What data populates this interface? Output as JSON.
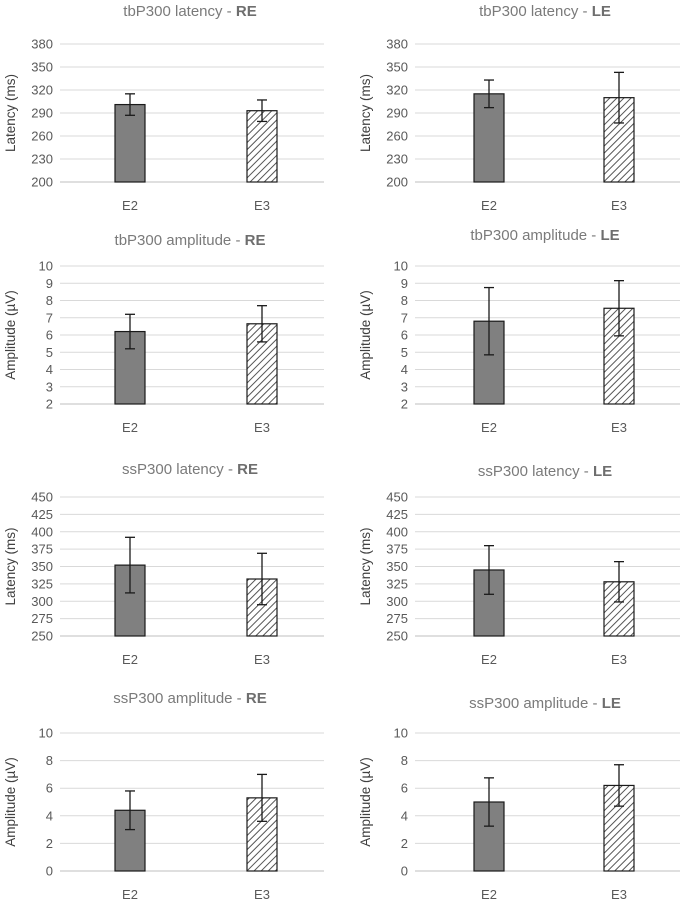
{
  "chart_data": [
    {
      "type": "bar",
      "title": "tbP300 latency",
      "title_suffix": "RE",
      "ylabel": "Latency  (ms)",
      "categories": [
        "E2",
        "E3"
      ],
      "ylim": [
        200,
        380
      ],
      "yticks": [
        200,
        230,
        260,
        290,
        320,
        350,
        380
      ],
      "values": [
        301,
        293
      ],
      "errors": [
        14,
        14
      ],
      "patterns": [
        "solid",
        "hatched"
      ]
    },
    {
      "type": "bar",
      "title": "tbP300 latency",
      "title_suffix": "LE",
      "ylabel": "Latency  (ms)",
      "categories": [
        "E2",
        "E3"
      ],
      "ylim": [
        200,
        380
      ],
      "yticks": [
        200,
        230,
        260,
        290,
        320,
        350,
        380
      ],
      "values": [
        315,
        310
      ],
      "errors": [
        18,
        33
      ],
      "patterns": [
        "solid",
        "hatched"
      ]
    },
    {
      "type": "bar",
      "title": "tbP300 amplitude",
      "title_suffix": "RE",
      "ylabel": "Amplitude (µV)",
      "categories": [
        "E2",
        "E3"
      ],
      "ylim": [
        2,
        10
      ],
      "yticks": [
        2,
        3,
        4,
        5,
        6,
        7,
        8,
        9,
        10
      ],
      "values": [
        6.2,
        6.65
      ],
      "errors": [
        1.0,
        1.05
      ],
      "patterns": [
        "solid",
        "hatched"
      ]
    },
    {
      "type": "bar",
      "title": "tbP300 amplitude",
      "title_suffix": "LE",
      "ylabel": "Amplitude (µV)",
      "categories": [
        "E2",
        "E3"
      ],
      "ylim": [
        2,
        10
      ],
      "yticks": [
        2,
        3,
        4,
        5,
        6,
        7,
        8,
        9,
        10
      ],
      "values": [
        6.8,
        7.55
      ],
      "errors": [
        1.95,
        1.6
      ],
      "patterns": [
        "solid",
        "hatched"
      ]
    },
    {
      "type": "bar",
      "title": "ssP300 latency",
      "title_suffix": "RE",
      "ylabel": "Latency  (ms)",
      "categories": [
        "E2",
        "E3"
      ],
      "ylim": [
        250,
        450
      ],
      "yticks": [
        250,
        275,
        300,
        325,
        350,
        375,
        400,
        425,
        450
      ],
      "values": [
        352,
        332
      ],
      "errors": [
        40,
        37
      ],
      "patterns": [
        "solid",
        "hatched"
      ]
    },
    {
      "type": "bar",
      "title": "ssP300 latency",
      "title_suffix": "LE",
      "ylabel": "Latency  (ms)",
      "categories": [
        "E2",
        "E3"
      ],
      "ylim": [
        250,
        450
      ],
      "yticks": [
        250,
        275,
        300,
        325,
        350,
        375,
        400,
        425,
        450
      ],
      "values": [
        345,
        328
      ],
      "errors": [
        35,
        29
      ],
      "patterns": [
        "solid",
        "hatched"
      ]
    },
    {
      "type": "bar",
      "title": "ssP300 amplitude",
      "title_suffix": "RE",
      "ylabel": "Amplitude (µV)",
      "categories": [
        "E2",
        "E3"
      ],
      "ylim": [
        0,
        10
      ],
      "yticks": [
        0,
        2,
        4,
        6,
        8,
        10
      ],
      "values": [
        4.4,
        5.3
      ],
      "errors": [
        1.4,
        1.7
      ],
      "patterns": [
        "solid",
        "hatched"
      ]
    },
    {
      "type": "bar",
      "title": "ssP300 amplitude",
      "title_suffix": "LE",
      "ylabel": "Amplitude (µV)",
      "categories": [
        "E2",
        "E3"
      ],
      "ylim": [
        0,
        10
      ],
      "yticks": [
        0,
        2,
        4,
        6,
        8,
        10
      ],
      "values": [
        5.0,
        6.2
      ],
      "errors": [
        1.75,
        1.5
      ],
      "patterns": [
        "solid",
        "hatched"
      ]
    }
  ]
}
